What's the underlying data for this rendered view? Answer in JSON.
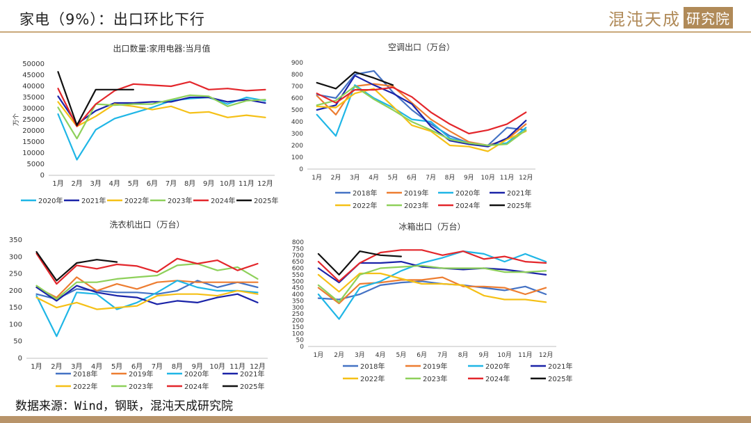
{
  "header": {
    "title": "家电（9%）：出口环比下行",
    "logo_text": "混沌天成",
    "logo_box": "研究院"
  },
  "footer": {
    "source": "数据来源：Wind，钢联，混沌天成研究院"
  },
  "chart_data": [
    {
      "type": "line",
      "title": "出口数量:家用电器:当月值",
      "ylabel": "万个",
      "categories": [
        "1月",
        "2月",
        "3月",
        "4月",
        "5月",
        "6月",
        "7月",
        "8月",
        "9月",
        "10月",
        "11月",
        "12月"
      ],
      "ylim": [
        0,
        50000
      ],
      "yticks": [
        0,
        5000,
        10000,
        15000,
        20000,
        25000,
        30000,
        35000,
        40000,
        45000,
        50000
      ],
      "legend": "bottom",
      "series": [
        {
          "name": "2020年",
          "color": "#1fb6e6",
          "values": [
            27500,
            7000,
            20500,
            25500,
            28000,
            30500,
            33500,
            34500,
            35000,
            32000,
            35000,
            33500
          ]
        },
        {
          "name": "2021年",
          "color": "#1a23a8",
          "values": [
            35500,
            23000,
            29000,
            32500,
            32500,
            33000,
            33000,
            35000,
            35000,
            33000,
            34000,
            32500
          ]
        },
        {
          "name": "2022年",
          "color": "#f5c016",
          "values": [
            33000,
            22000,
            26500,
            32000,
            31000,
            29500,
            31000,
            28000,
            28500,
            26000,
            27000,
            26000
          ]
        },
        {
          "name": "2023年",
          "color": "#8ed05a",
          "values": [
            30500,
            16500,
            32000,
            31500,
            32000,
            32000,
            34000,
            36000,
            35500,
            31000,
            33500,
            34000
          ]
        },
        {
          "name": "2024年",
          "color": "#e3262b",
          "values": [
            39000,
            22000,
            32000,
            38000,
            41000,
            40500,
            40000,
            42000,
            38500,
            39000,
            38000,
            38500
          ]
        },
        {
          "name": "2025年",
          "color": "#111111",
          "values": [
            46500,
            22500,
            38500,
            38500,
            38500,
            null,
            null,
            null,
            null,
            null,
            null,
            null
          ]
        }
      ]
    },
    {
      "type": "line",
      "title": "空调出口（万台）",
      "categories": [
        "1月",
        "2月",
        "3月",
        "4月",
        "5月",
        "6月",
        "7月",
        "8月",
        "9月",
        "10月",
        "11月",
        "12月"
      ],
      "ylim": [
        0,
        900
      ],
      "yticks": [
        0,
        100,
        200,
        300,
        400,
        500,
        600,
        700,
        800,
        900
      ],
      "legend": "bottom",
      "series": [
        {
          "name": "2018年",
          "color": "#4472c4",
          "values": [
            630,
            600,
            800,
            830,
            650,
            500,
            380,
            280,
            220,
            200,
            350,
            330
          ]
        },
        {
          "name": "2019年",
          "color": "#ed7d31",
          "values": [
            620,
            460,
            700,
            720,
            700,
            560,
            420,
            320,
            230,
            200,
            250,
            380
          ]
        },
        {
          "name": "2020年",
          "color": "#1fb6e6",
          "values": [
            460,
            280,
            710,
            600,
            520,
            420,
            400,
            260,
            220,
            200,
            220,
            350
          ]
        },
        {
          "name": "2021年",
          "color": "#1a23a8",
          "values": [
            500,
            540,
            790,
            710,
            640,
            550,
            360,
            240,
            210,
            190,
            260,
            410
          ]
        },
        {
          "name": "2022年",
          "color": "#f5c016",
          "values": [
            530,
            520,
            640,
            680,
            530,
            370,
            320,
            200,
            190,
            150,
            250,
            320
          ]
        },
        {
          "name": "2023年",
          "color": "#8ed05a",
          "values": [
            540,
            580,
            700,
            590,
            500,
            400,
            330,
            250,
            220,
            200,
            210,
            330
          ]
        },
        {
          "name": "2024年",
          "color": "#e3262b",
          "values": [
            640,
            560,
            670,
            670,
            690,
            610,
            480,
            380,
            300,
            330,
            380,
            480
          ]
        },
        {
          "name": "2025年",
          "color": "#111111",
          "values": [
            730,
            680,
            820,
            770,
            710,
            null,
            null,
            null,
            null,
            null,
            null,
            null
          ]
        }
      ]
    },
    {
      "type": "line",
      "title": "洗衣机出口（万台）",
      "categories": [
        "1月",
        "2月",
        "3月",
        "4月",
        "5月",
        "6月",
        "7月",
        "8月",
        "9月",
        "10月",
        "11月",
        "12月"
      ],
      "ylim": [
        0,
        350
      ],
      "yticks": [
        0,
        50,
        100,
        150,
        200,
        250,
        300,
        350
      ],
      "legend": "bottom",
      "series": [
        {
          "name": "2018年",
          "color": "#4472c4",
          "values": [
            190,
            175,
            205,
            200,
            195,
            195,
            190,
            200,
            230,
            210,
            225,
            210
          ]
        },
        {
          "name": "2019年",
          "color": "#ed7d31",
          "values": [
            210,
            180,
            240,
            200,
            220,
            205,
            225,
            230,
            225,
            225,
            225,
            225
          ]
        },
        {
          "name": "2020年",
          "color": "#1fb6e6",
          "values": [
            185,
            65,
            195,
            190,
            145,
            165,
            195,
            230,
            210,
            200,
            200,
            195
          ]
        },
        {
          "name": "2021年",
          "color": "#1a23a8",
          "values": [
            210,
            170,
            215,
            195,
            185,
            180,
            160,
            170,
            165,
            180,
            190,
            165
          ]
        },
        {
          "name": "2022年",
          "color": "#f5c016",
          "values": [
            180,
            150,
            165,
            145,
            150,
            155,
            185,
            190,
            190,
            185,
            200,
            190
          ]
        },
        {
          "name": "2023年",
          "color": "#8ed05a",
          "values": [
            215,
            175,
            225,
            225,
            235,
            240,
            245,
            275,
            280,
            260,
            270,
            235
          ]
        },
        {
          "name": "2024年",
          "color": "#e3262b",
          "values": [
            310,
            220,
            275,
            265,
            278,
            273,
            255,
            295,
            280,
            290,
            260,
            280
          ]
        },
        {
          "name": "2025年",
          "color": "#111111",
          "values": [
            315,
            230,
            282,
            292,
            285,
            null,
            null,
            null,
            null,
            null,
            null,
            null
          ]
        }
      ]
    },
    {
      "type": "line",
      "title": "冰箱出口（万台）",
      "categories": [
        "1月",
        "2月",
        "3月",
        "4月",
        "5月",
        "6月",
        "7月",
        "8月",
        "9月",
        "10月",
        "11月",
        "12月"
      ],
      "ylim": [
        0,
        800
      ],
      "yticks": [
        0,
        50,
        100,
        150,
        200,
        250,
        300,
        350,
        400,
        450,
        500,
        550,
        600,
        650,
        700,
        750,
        800
      ],
      "legend": "bottom",
      "series": [
        {
          "name": "2018年",
          "color": "#4472c4",
          "values": [
            370,
            360,
            400,
            470,
            490,
            500,
            480,
            470,
            450,
            430,
            460,
            400
          ]
        },
        {
          "name": "2019年",
          "color": "#ed7d31",
          "values": [
            450,
            330,
            480,
            490,
            510,
            510,
            530,
            460,
            460,
            450,
            400,
            450
          ]
        },
        {
          "name": "2020年",
          "color": "#1fb6e6",
          "values": [
            400,
            210,
            450,
            500,
            580,
            640,
            680,
            730,
            710,
            650,
            710,
            650
          ]
        },
        {
          "name": "2021年",
          "color": "#1a23a8",
          "values": [
            600,
            490,
            640,
            640,
            650,
            610,
            600,
            590,
            600,
            590,
            570,
            550
          ]
        },
        {
          "name": "2022年",
          "color": "#f5c016",
          "values": [
            550,
            420,
            560,
            560,
            520,
            480,
            480,
            470,
            390,
            360,
            360,
            340
          ]
        },
        {
          "name": "2023年",
          "color": "#8ed05a",
          "values": [
            470,
            340,
            550,
            600,
            610,
            620,
            600,
            600,
            600,
            570,
            570,
            580
          ]
        },
        {
          "name": "2024年",
          "color": "#e3262b",
          "values": [
            650,
            500,
            640,
            720,
            740,
            740,
            700,
            730,
            670,
            690,
            650,
            640
          ]
        },
        {
          "name": "2025年",
          "color": "#111111",
          "values": [
            710,
            550,
            730,
            700,
            690,
            null,
            null,
            null,
            null,
            null,
            null,
            null
          ]
        }
      ]
    }
  ]
}
